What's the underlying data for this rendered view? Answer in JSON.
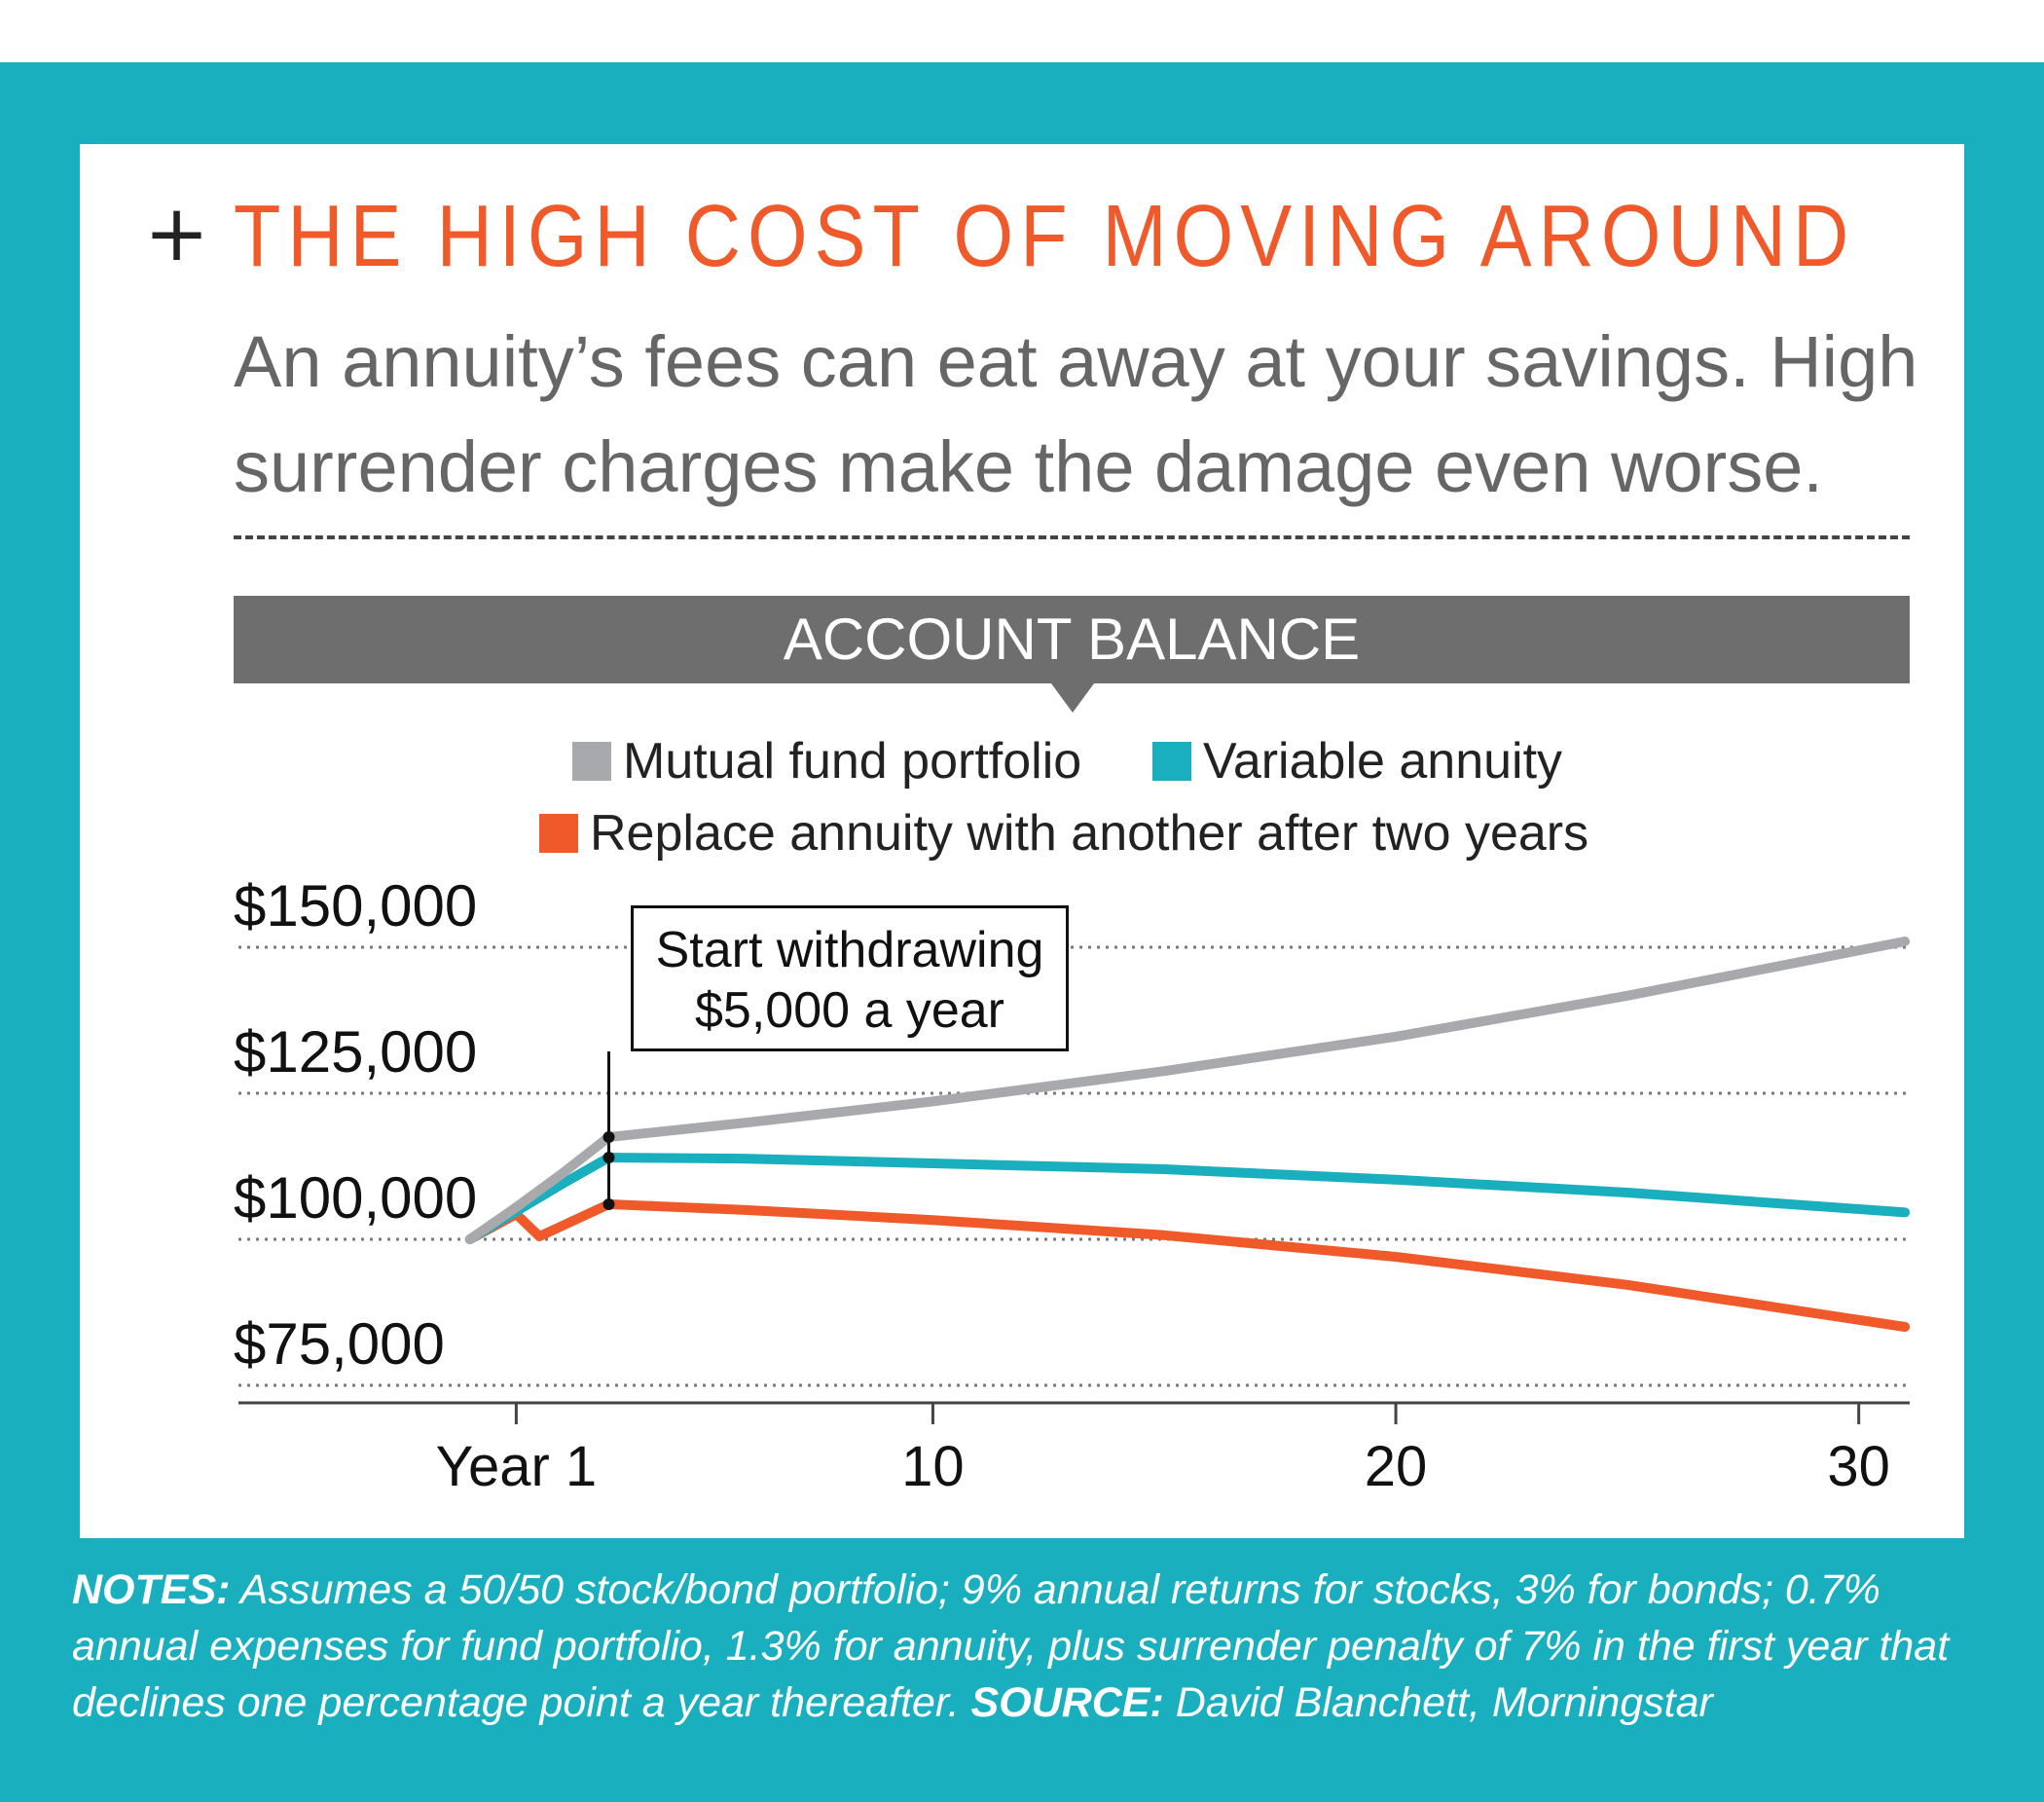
{
  "header": {
    "plus": "+",
    "title": "THE HIGH COST OF MOVING AROUND",
    "subtitle": "An annuity’s fees can eat away at your savings. High surrender charges make the damage even worse."
  },
  "colors": {
    "frame": "#1aafbe",
    "title": "#f0592a",
    "mutual_fund": "#a7a9ac",
    "variable_annuity": "#1aafbe",
    "replace_annuity": "#f0592a"
  },
  "chart_data": {
    "type": "line",
    "title": "ACCOUNT BALANCE",
    "xlabel": "",
    "ylabel": "",
    "x_ticks": [
      {
        "value": 1,
        "label": "Year 1"
      },
      {
        "value": 10,
        "label": "10"
      },
      {
        "value": 20,
        "label": "20"
      },
      {
        "value": 30,
        "label": "30"
      }
    ],
    "y_ticks": [
      {
        "value": 75000,
        "label": "$75,000"
      },
      {
        "value": 100000,
        "label": "$100,000"
      },
      {
        "value": 125000,
        "label": "$125,000"
      },
      {
        "value": 150000,
        "label": "$150,000"
      }
    ],
    "xlim": [
      -5,
      31.1
    ],
    "ylim": [
      72000,
      150000
    ],
    "grid": "horizontal dotted",
    "legend": "top",
    "series": [
      {
        "name": "Mutual fund portfolio",
        "color": "#a7a9ac",
        "points": [
          [
            0,
            100000
          ],
          [
            1,
            105500
          ],
          [
            2,
            111300
          ],
          [
            3,
            117500
          ],
          [
            6,
            120000
          ],
          [
            10,
            123600
          ],
          [
            15,
            128800
          ],
          [
            20,
            134700
          ],
          [
            25,
            141700
          ],
          [
            31,
            151000
          ]
        ]
      },
      {
        "name": "Variable annuity",
        "color": "#1aafbe",
        "points": [
          [
            0,
            100000
          ],
          [
            1,
            104800
          ],
          [
            2,
            109500
          ],
          [
            3,
            114000
          ],
          [
            6,
            113800
          ],
          [
            10,
            113000
          ],
          [
            15,
            112000
          ],
          [
            20,
            110200
          ],
          [
            25,
            108000
          ],
          [
            31,
            104600
          ]
        ]
      },
      {
        "name": "Replace annuity with another after two years",
        "color": "#f0592a",
        "points": [
          [
            0,
            100000
          ],
          [
            1,
            104300
          ],
          [
            1.5,
            100500
          ],
          [
            3,
            106000
          ],
          [
            6,
            105000
          ],
          [
            10,
            103300
          ],
          [
            15,
            100700
          ],
          [
            20,
            97000
          ],
          [
            25,
            92200
          ],
          [
            31,
            85000
          ]
        ]
      }
    ],
    "annotation": {
      "line1": "Start withdrawing",
      "line2": "$5,000 a year",
      "x": 3
    }
  },
  "notes": {
    "notes_label": "NOTES:",
    "notes_text": " Assumes a 50/50 stock/bond portfolio; 9% annual returns for stocks, 3% for bonds; 0.7% annual expenses for fund portfolio, 1.3% for annuity, plus surrender penalty of 7% in the first year that declines one percentage point a year thereafter. ",
    "source_label": "SOURCE:",
    "source_text": " David Blanchett, Morningstar"
  }
}
